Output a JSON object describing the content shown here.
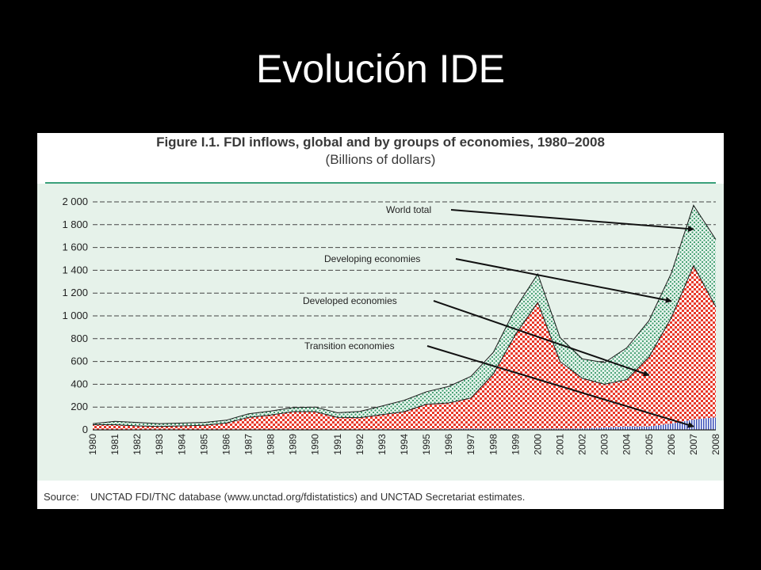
{
  "slide": {
    "title": "Evolución IDE"
  },
  "figure": {
    "caption": "Figure I.1.  FDI inflows, global and by groups of economies, 1980–2008",
    "unit": "(Billions of dollars)",
    "source_label": "Source:",
    "source_text": "UNCTAD FDI/TNC database (www.unctad.org/fdistatistics) and UNCTAD Secretariat estimates."
  },
  "chart_data": {
    "type": "area",
    "title": "Figure I.1.  FDI inflows, global and by groups of economies, 1980–2008",
    "subtitle": "(Billions of dollars)",
    "xlabel": "",
    "ylabel": "",
    "categories": [
      "1980",
      "1981",
      "1982",
      "1983",
      "1984",
      "1985",
      "1986",
      "1987",
      "1988",
      "1989",
      "1990",
      "1991",
      "1992",
      "1993",
      "1994",
      "1995",
      "1996",
      "1997",
      "1998",
      "1999",
      "2000",
      "2001",
      "2002",
      "2003",
      "2004",
      "2005",
      "2006",
      "2007",
      "2008"
    ],
    "ylim": [
      0,
      2000
    ],
    "yticks": [
      0,
      200,
      400,
      600,
      800,
      1000,
      1200,
      1400,
      1600,
      1800,
      2000
    ],
    "ytick_labels": [
      "0",
      "200",
      "400",
      "600",
      "800",
      "1 000",
      "1 200",
      "1 400",
      "1 600",
      "1 800",
      "2 000"
    ],
    "grid": "horizontal dashed",
    "stacked": true,
    "series": [
      {
        "name": "Transition economies",
        "color": "#3a4fb8",
        "values": [
          0,
          0,
          0,
          0,
          0,
          0,
          0,
          0,
          0,
          0,
          0,
          0,
          2,
          4,
          5,
          5,
          6,
          10,
          10,
          8,
          8,
          10,
          12,
          20,
          30,
          30,
          55,
          90,
          110
        ]
      },
      {
        "name": "Developed economies",
        "color": "#e8392a",
        "values": [
          45,
          45,
          35,
          30,
          35,
          40,
          60,
          110,
          130,
          160,
          160,
          110,
          105,
          130,
          155,
          220,
          230,
          270,
          480,
          830,
          1110,
          590,
          440,
          380,
          410,
          610,
          930,
          1350,
          970
        ]
      },
      {
        "name": "Developing economies",
        "color": "#3a9a6a",
        "values": [
          10,
          30,
          30,
          25,
          25,
          25,
          25,
          30,
          35,
          35,
          40,
          40,
          55,
          75,
          100,
          110,
          145,
          190,
          190,
          230,
          250,
          210,
          170,
          190,
          280,
          320,
          390,
          530,
          590
        ]
      }
    ],
    "world_total": [
      55,
      75,
      65,
      55,
      60,
      65,
      85,
      140,
      165,
      195,
      200,
      150,
      162,
      209,
      260,
      335,
      381,
      470,
      680,
      1068,
      1368,
      810,
      622,
      590,
      720,
      960,
      1375,
      1970,
      1670
    ],
    "annotations": [
      {
        "text": "World total",
        "points_to": {
          "category": "2007",
          "value": 1760
        }
      },
      {
        "text": "Developing economies",
        "points_to": {
          "category": "2006",
          "value": 1130
        }
      },
      {
        "text": "Developed economies",
        "points_to": {
          "category": "2005",
          "value": 480
        }
      },
      {
        "text": "Transition economies",
        "points_to": {
          "category": "2007",
          "value": 30
        }
      }
    ]
  }
}
